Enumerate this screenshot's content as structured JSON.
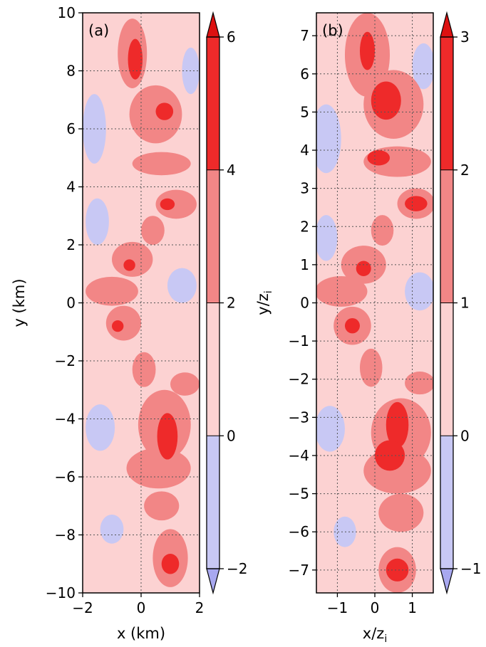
{
  "chart_data": [
    {
      "panel_label": "(a)",
      "type": "heatmap",
      "xlabel": "x (km)",
      "ylabel": "y (km)",
      "xlim": [
        -2,
        2
      ],
      "ylim": [
        -10,
        10
      ],
      "xticks": [
        -2,
        0,
        2
      ],
      "yticks": [
        -10,
        -8,
        -6,
        -4,
        -2,
        0,
        2,
        4,
        6,
        8,
        10
      ],
      "xtick_labels": [
        "−2",
        "0",
        "2"
      ],
      "ytick_labels": [
        "−10",
        "−8",
        "−6",
        "−4",
        "−2",
        "0",
        "2",
        "4",
        "6",
        "8",
        "10"
      ],
      "grid": true,
      "colorbar": {
        "levels": [
          -2,
          0,
          2,
          4,
          6
        ],
        "tick_labels": [
          "−2",
          "0",
          "2",
          "4",
          "6"
        ],
        "colors": [
          "#c8c8f4",
          "#fcd2d2",
          "#f28686",
          "#ee2a2a"
        ],
        "extend": "both",
        "under_color": "#a8a8f0",
        "over_color": "#dd1111"
      },
      "regions": [
        {
          "level": 0,
          "x": -0.3,
          "y": 8.6,
          "rx": 0.5,
          "ry": 1.2
        },
        {
          "level": 0,
          "x": 0.5,
          "y": 6.5,
          "rx": 0.9,
          "ry": 1.0
        },
        {
          "level": 0,
          "x": 0.7,
          "y": 4.8,
          "rx": 1.0,
          "ry": 0.4
        },
        {
          "level": 0,
          "x": 1.2,
          "y": 3.4,
          "rx": 0.7,
          "ry": 0.5
        },
        {
          "level": 0,
          "x": 0.4,
          "y": 2.5,
          "rx": 0.4,
          "ry": 0.5
        },
        {
          "level": 0,
          "x": -0.3,
          "y": 1.5,
          "rx": 0.7,
          "ry": 0.6
        },
        {
          "level": 0,
          "x": -1.0,
          "y": 0.4,
          "rx": 0.9,
          "ry": 0.5
        },
        {
          "level": 0,
          "x": -0.6,
          "y": -0.7,
          "rx": 0.6,
          "ry": 0.6
        },
        {
          "level": 0,
          "x": 0.1,
          "y": -2.3,
          "rx": 0.4,
          "ry": 0.6
        },
        {
          "level": 0,
          "x": 1.5,
          "y": -2.8,
          "rx": 0.5,
          "ry": 0.4
        },
        {
          "level": 0,
          "x": 0.8,
          "y": -4.2,
          "rx": 0.9,
          "ry": 1.2
        },
        {
          "level": 0,
          "x": 0.6,
          "y": -5.7,
          "rx": 1.1,
          "ry": 0.7
        },
        {
          "level": 0,
          "x": 0.7,
          "y": -7.0,
          "rx": 0.6,
          "ry": 0.5
        },
        {
          "level": 0,
          "x": 1.0,
          "y": -8.8,
          "rx": 0.6,
          "ry": 1.0
        },
        {
          "level": 1,
          "x": -0.2,
          "y": 8.4,
          "rx": 0.25,
          "ry": 0.7
        },
        {
          "level": 1,
          "x": 0.8,
          "y": 6.6,
          "rx": 0.3,
          "ry": 0.3
        },
        {
          "level": 1,
          "x": 0.9,
          "y": 3.4,
          "rx": 0.25,
          "ry": 0.2
        },
        {
          "level": 1,
          "x": -0.4,
          "y": 1.3,
          "rx": 0.2,
          "ry": 0.2
        },
        {
          "level": 1,
          "x": -0.8,
          "y": -0.8,
          "rx": 0.2,
          "ry": 0.2
        },
        {
          "level": 1,
          "x": 0.9,
          "y": -4.6,
          "rx": 0.35,
          "ry": 0.8
        },
        {
          "level": 1,
          "x": 1.0,
          "y": -9.0,
          "rx": 0.3,
          "ry": 0.35
        },
        {
          "level": -1,
          "x": -1.6,
          "y": 6.0,
          "rx": 0.4,
          "ry": 1.2
        },
        {
          "level": -1,
          "x": -1.5,
          "y": 2.8,
          "rx": 0.4,
          "ry": 0.8
        },
        {
          "level": -1,
          "x": 1.4,
          "y": 0.6,
          "rx": 0.5,
          "ry": 0.6
        },
        {
          "level": -1,
          "x": -1.4,
          "y": -4.3,
          "rx": 0.5,
          "ry": 0.8
        },
        {
          "level": -1,
          "x": 1.7,
          "y": 8.0,
          "rx": 0.3,
          "ry": 0.8
        },
        {
          "level": -1,
          "x": -1.0,
          "y": -7.8,
          "rx": 0.4,
          "ry": 0.5
        }
      ]
    },
    {
      "panel_label": "(b)",
      "type": "heatmap",
      "xlabel": "x/zi",
      "ylabel": "y/zi",
      "xlim": [
        -1.56,
        1.56
      ],
      "ylim": [
        -7.6,
        7.6
      ],
      "xticks": [
        -1,
        0,
        1
      ],
      "yticks": [
        -7,
        -6,
        -5,
        -4,
        -3,
        -2,
        -1,
        0,
        1,
        2,
        3,
        4,
        5,
        6,
        7
      ],
      "xtick_labels": [
        "−1",
        "0",
        "1"
      ],
      "ytick_labels": [
        "−7",
        "−6",
        "−5",
        "−4",
        "−3",
        "−2",
        "−1",
        "0",
        "1",
        "2",
        "3",
        "4",
        "5",
        "6",
        "7"
      ],
      "grid": true,
      "colorbar": {
        "levels": [
          -1,
          0,
          1,
          2,
          3
        ],
        "tick_labels": [
          "−1",
          "0",
          "1",
          "2",
          "3"
        ],
        "colors": [
          "#c8c8f4",
          "#fcd2d2",
          "#f28686",
          "#ee2a2a"
        ],
        "extend": "both",
        "under_color": "#a8a8f0",
        "over_color": "#dd1111"
      },
      "regions": [
        {
          "level": 0,
          "x": -0.2,
          "y": 6.5,
          "rx": 0.6,
          "ry": 1.1
        },
        {
          "level": 0,
          "x": 0.5,
          "y": 5.2,
          "rx": 0.8,
          "ry": 0.9
        },
        {
          "level": 0,
          "x": 0.6,
          "y": 3.7,
          "rx": 0.9,
          "ry": 0.4
        },
        {
          "level": 0,
          "x": 1.1,
          "y": 2.6,
          "rx": 0.5,
          "ry": 0.4
        },
        {
          "level": 0,
          "x": 0.2,
          "y": 1.9,
          "rx": 0.3,
          "ry": 0.4
        },
        {
          "level": 0,
          "x": -0.3,
          "y": 1.0,
          "rx": 0.6,
          "ry": 0.5
        },
        {
          "level": 0,
          "x": -0.9,
          "y": 0.3,
          "rx": 0.7,
          "ry": 0.4
        },
        {
          "level": 0,
          "x": -0.6,
          "y": -0.6,
          "rx": 0.5,
          "ry": 0.5
        },
        {
          "level": 0,
          "x": -0.1,
          "y": -1.7,
          "rx": 0.3,
          "ry": 0.5
        },
        {
          "level": 0,
          "x": 1.2,
          "y": -2.1,
          "rx": 0.4,
          "ry": 0.3
        },
        {
          "level": 0,
          "x": 0.7,
          "y": -3.4,
          "rx": 0.8,
          "ry": 0.9
        },
        {
          "level": 0,
          "x": 0.6,
          "y": -4.4,
          "rx": 0.9,
          "ry": 0.6
        },
        {
          "level": 0,
          "x": 0.7,
          "y": -5.5,
          "rx": 0.6,
          "ry": 0.5
        },
        {
          "level": 0,
          "x": 0.6,
          "y": -7.0,
          "rx": 0.5,
          "ry": 0.6
        },
        {
          "level": 1,
          "x": -0.2,
          "y": 6.6,
          "rx": 0.2,
          "ry": 0.5
        },
        {
          "level": 1,
          "x": 0.3,
          "y": 5.3,
          "rx": 0.4,
          "ry": 0.5
        },
        {
          "level": 1,
          "x": 0.1,
          "y": 3.8,
          "rx": 0.3,
          "ry": 0.2
        },
        {
          "level": 1,
          "x": 1.1,
          "y": 2.6,
          "rx": 0.3,
          "ry": 0.2
        },
        {
          "level": 1,
          "x": -0.3,
          "y": 0.9,
          "rx": 0.2,
          "ry": 0.2
        },
        {
          "level": 1,
          "x": -0.6,
          "y": -0.6,
          "rx": 0.2,
          "ry": 0.2
        },
        {
          "level": 1,
          "x": 0.6,
          "y": -3.2,
          "rx": 0.3,
          "ry": 0.6
        },
        {
          "level": 1,
          "x": 0.4,
          "y": -4.0,
          "rx": 0.4,
          "ry": 0.4
        },
        {
          "level": 1,
          "x": 0.6,
          "y": -7.0,
          "rx": 0.3,
          "ry": 0.3
        },
        {
          "level": -1,
          "x": -1.3,
          "y": 4.3,
          "rx": 0.4,
          "ry": 0.9
        },
        {
          "level": -1,
          "x": -1.3,
          "y": 1.7,
          "rx": 0.3,
          "ry": 0.6
        },
        {
          "level": -1,
          "x": 1.2,
          "y": 0.3,
          "rx": 0.4,
          "ry": 0.5
        },
        {
          "level": -1,
          "x": -1.2,
          "y": -3.3,
          "rx": 0.4,
          "ry": 0.6
        },
        {
          "level": -1,
          "x": 1.3,
          "y": 6.2,
          "rx": 0.3,
          "ry": 0.6
        },
        {
          "level": -1,
          "x": -0.8,
          "y": -6.0,
          "rx": 0.3,
          "ry": 0.4
        }
      ]
    }
  ]
}
